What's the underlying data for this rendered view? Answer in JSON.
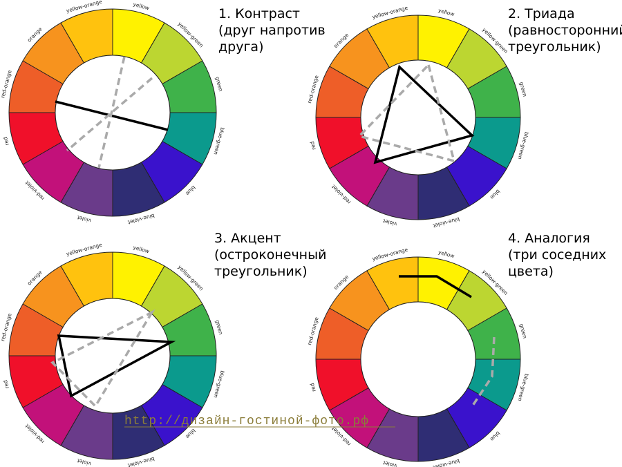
{
  "wheel": {
    "segments": [
      {
        "label": "yellow",
        "color": "#fff200"
      },
      {
        "label": "yellow-green",
        "color": "#bcd631"
      },
      {
        "label": "green",
        "color": "#3fb24a"
      },
      {
        "label": "blue-green",
        "color": "#0b9a8d"
      },
      {
        "label": "blue",
        "color": "#3a12cc"
      },
      {
        "label": "blue-violet",
        "color": "#2f2d74"
      },
      {
        "label": "violet",
        "color": "#6a3b8a"
      },
      {
        "label": "red-violet",
        "color": "#c2117a"
      },
      {
        "label": "red",
        "color": "#f0102a"
      },
      {
        "label": "red-orange",
        "color": "#ee5e28"
      },
      {
        "label": "orange",
        "color": "#f7931e"
      },
      {
        "label": "yellow-orange",
        "color": "#ffc20e"
      }
    ]
  },
  "panels": [
    {
      "title": [
        "1. Контраст",
        "(друг напротив",
        "друга)"
      ]
    },
    {
      "title": [
        "2. Триада",
        "(равносторонний",
        "треугольник)"
      ]
    },
    {
      "title": [
        "3. Акцент",
        "(остроконечный",
        "треугольник)"
      ]
    },
    {
      "title": [
        "4. Аналогия",
        "(три соседних",
        "цвета)"
      ]
    }
  ],
  "watermark": "http://дизайн-гостиной-фото.рф"
}
